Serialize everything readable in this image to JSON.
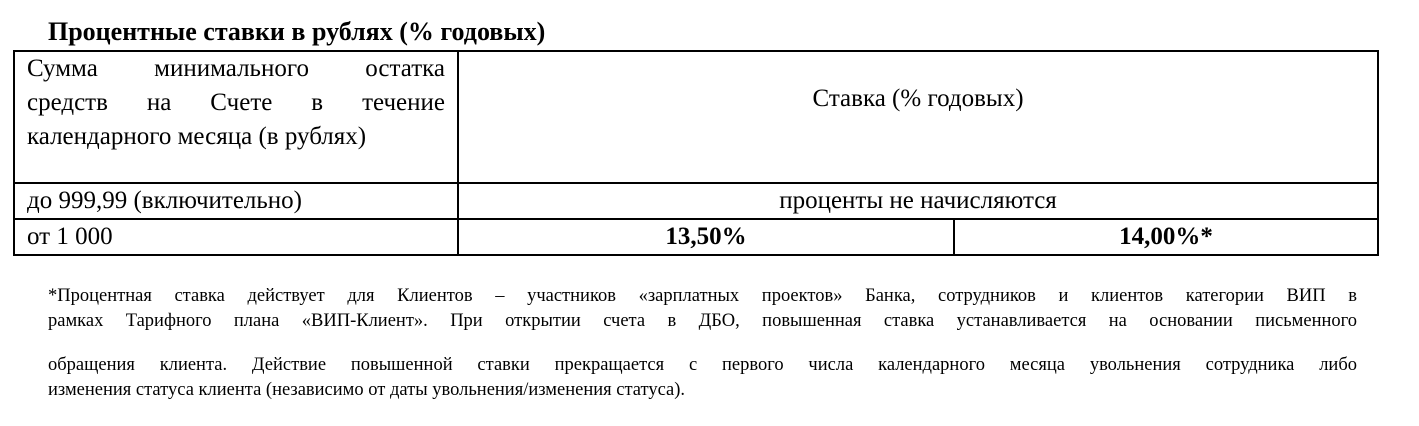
{
  "title": "Процентные ставки в рублях (% годовых)",
  "table": {
    "header_left_lines": [
      "Сумма минимального остатка",
      "средств на Счете в течение",
      "календарного месяца (в рублях)"
    ],
    "header_right": "Ставка (% годовых)",
    "rows": [
      {
        "amount": "до 999,99 (включительно)",
        "rate": "проценты не начисляются"
      },
      {
        "amount": "от 1 000",
        "rate_1": "13,50%",
        "rate_2": "14,00%*"
      }
    ]
  },
  "footnote": {
    "lines": [
      "*Процентная ставка действует для Клиентов – участников «зарплатных проектов» Банка, сотрудников и клиентов категории ВИП в",
      "рамках Тарифного плана «ВИП-Клиент». При открытии счета в ДБО, повышенная ставка устанавливается на основании письменного",
      "обращения клиента. Действие повышенной ставки прекращается с первого числа календарного месяца увольнения сотрудника либо",
      "изменения статуса клиента (независимо от даты увольнения/изменения статуса)."
    ]
  }
}
